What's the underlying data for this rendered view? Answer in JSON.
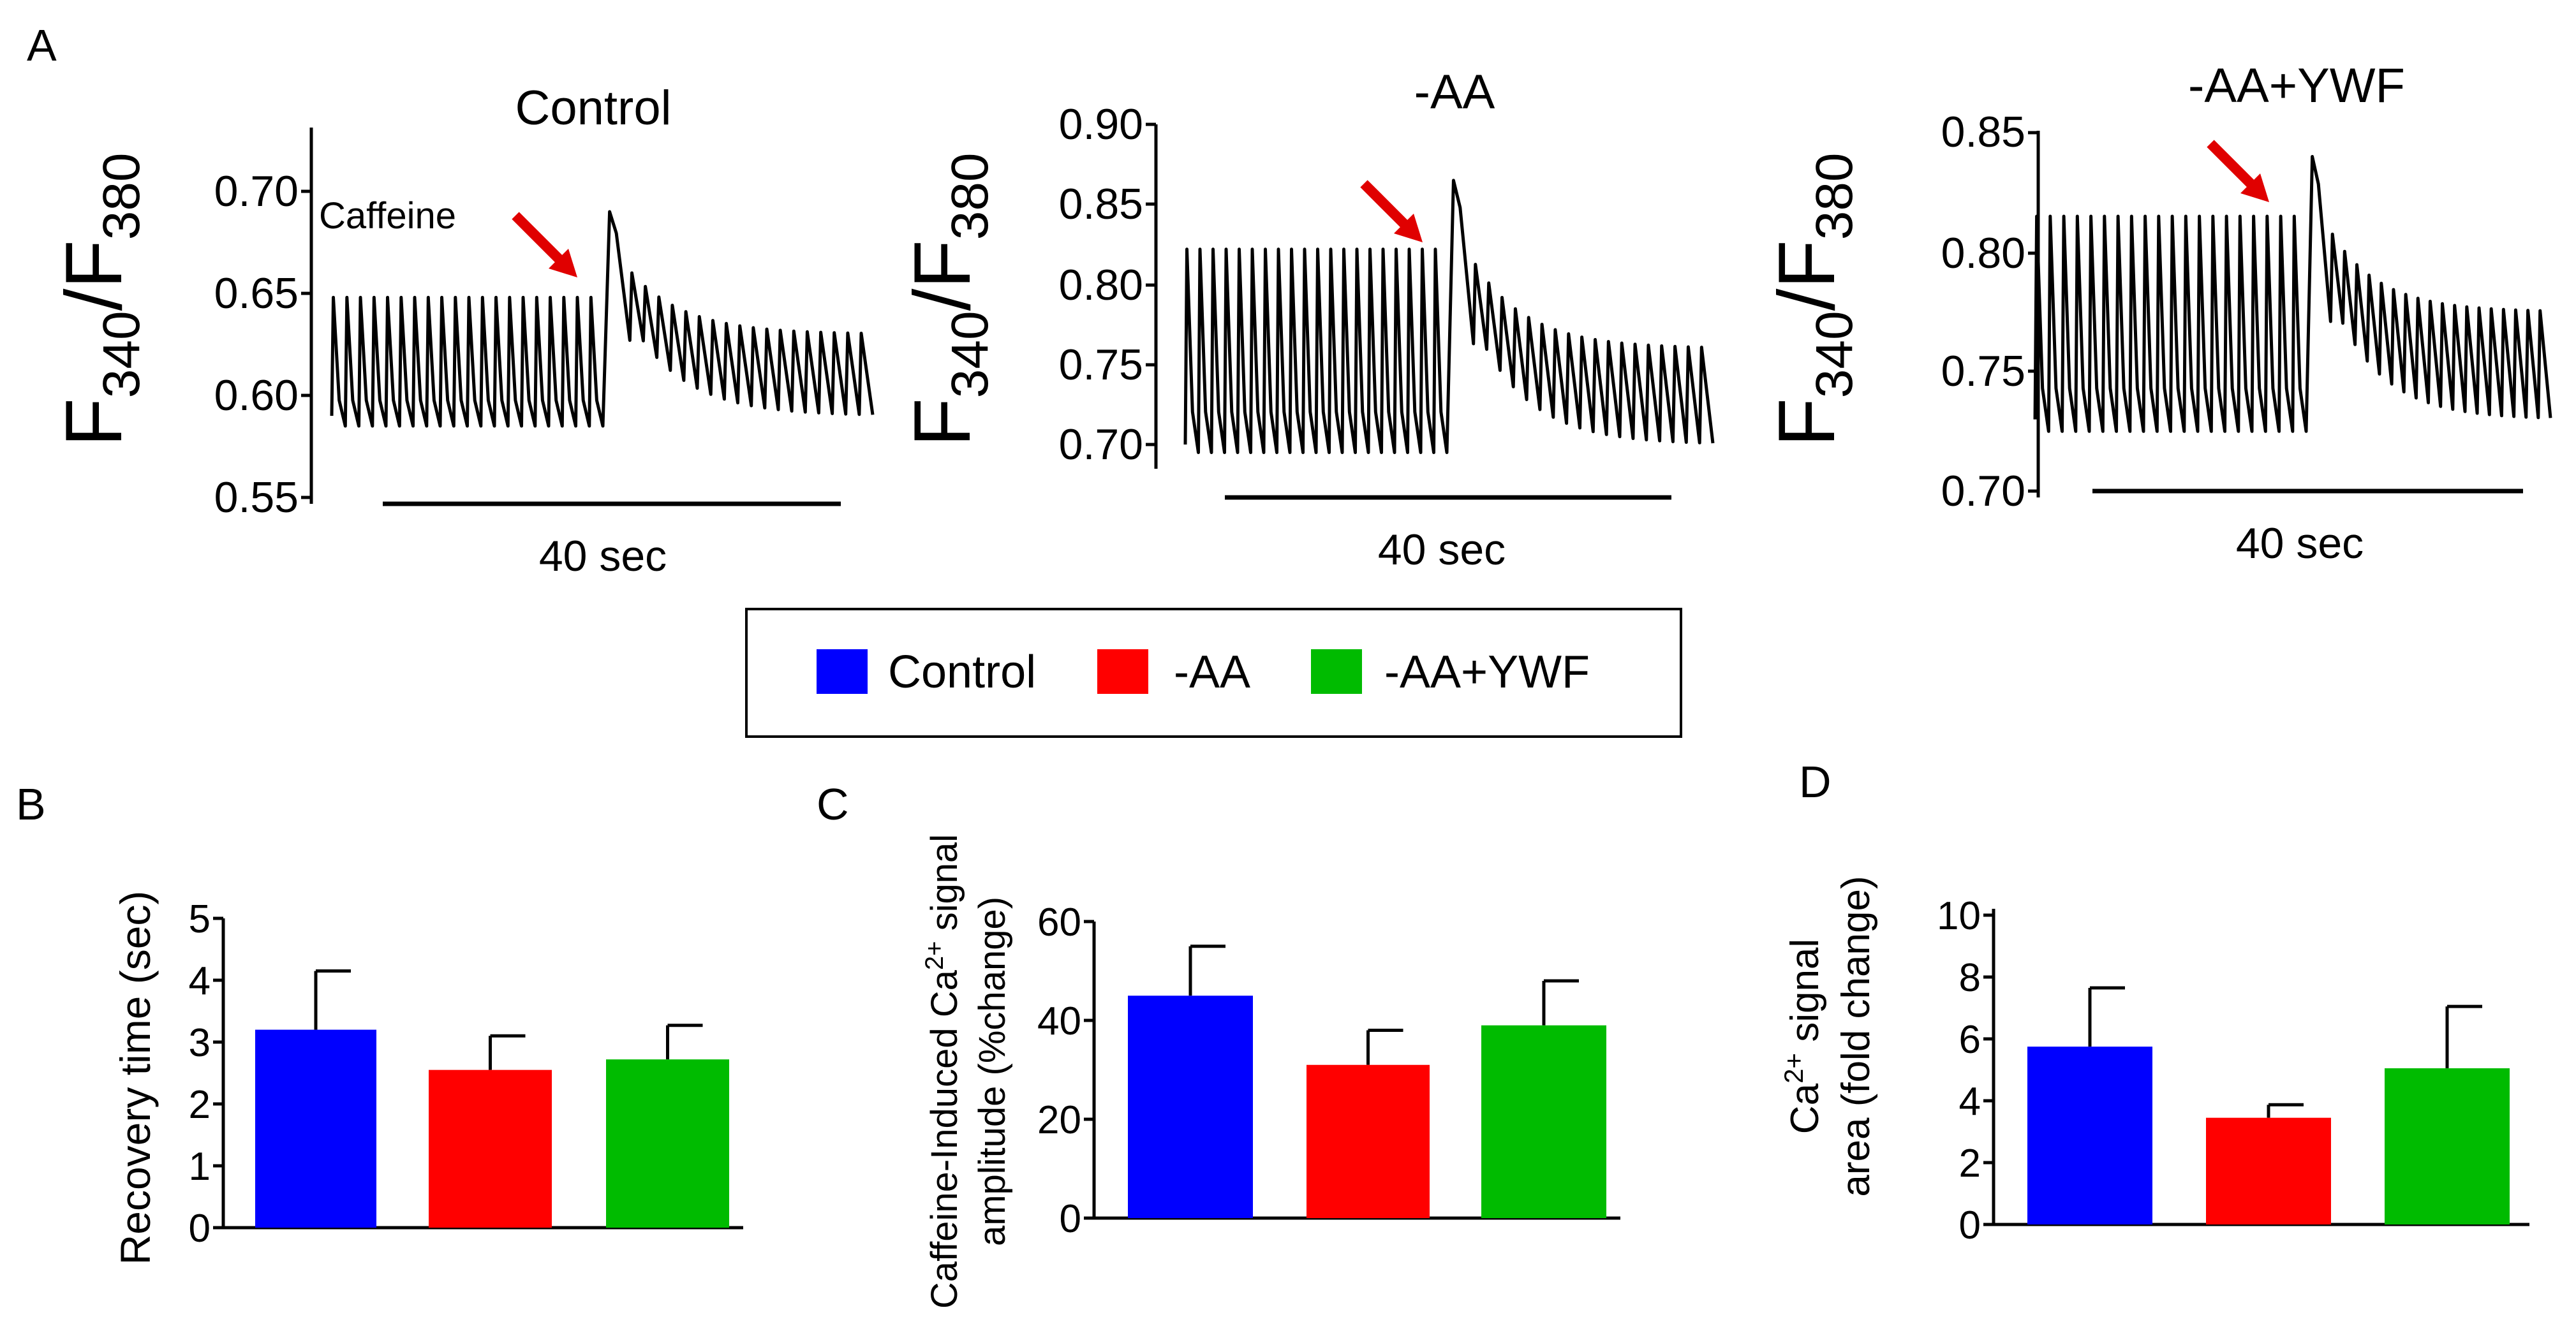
{
  "figure": {
    "panel_labels": [
      "A",
      "B",
      "C",
      "D"
    ],
    "legend": {
      "entries": [
        {
          "label": "Control",
          "color": "#0000ff"
        },
        {
          "label": "-AA",
          "color": "#ff0000"
        },
        {
          "label": "-AA+YWF",
          "color": "#00bb00"
        }
      ]
    }
  },
  "chart_data": [
    {
      "id": "A1",
      "type": "line",
      "title": "Control",
      "ylabel": "F340/F380",
      "ylabel_main": "F",
      "ylabel_sub1": "340",
      "ylabel_sep": "/F",
      "ylabel_sub2": "380",
      "yticks": [
        "0.70",
        "0.65",
        "0.60",
        "0.55"
      ],
      "ylim": [
        0.55,
        0.73
      ],
      "annotation": "Caffeine",
      "scale_bar_label": "40 sec",
      "series": [
        {
          "name": "Control",
          "baseline": 0.585,
          "peak": 0.648,
          "caffeine_peak": 0.69,
          "recovery_peak": 0.63,
          "n_before": 20,
          "n_after": 18
        }
      ]
    },
    {
      "id": "A2",
      "type": "line",
      "title": "-AA",
      "ylabel": "F340/F380",
      "ylabel_main": "F",
      "ylabel_sub1": "340",
      "ylabel_sep": "/F",
      "ylabel_sub2": "380",
      "yticks": [
        "0.90",
        "0.85",
        "0.80",
        "0.75",
        "0.70"
      ],
      "ylim": [
        0.69,
        0.9
      ],
      "scale_bar_label": "40 sec",
      "series": [
        {
          "name": "-AA",
          "baseline": 0.695,
          "peak": 0.822,
          "caffeine_peak": 0.865,
          "recovery_peak": 0.76,
          "n_before": 20,
          "n_after": 18
        }
      ]
    },
    {
      "id": "A3",
      "type": "line",
      "title": "-AA+YWF",
      "ylabel": "F340/F380",
      "ylabel_main": "F",
      "ylabel_sub1": "340",
      "ylabel_sep": "/F",
      "ylabel_sub2": "380",
      "yticks": [
        "0.85",
        "0.80",
        "0.75",
        "0.70"
      ],
      "ylim": [
        0.7,
        0.85
      ],
      "scale_bar_label": "40 sec",
      "series": [
        {
          "name": "-AA+YWF",
          "baseline": 0.725,
          "peak": 0.815,
          "caffeine_peak": 0.84,
          "recovery_peak": 0.775,
          "n_before": 20,
          "n_after": 18
        }
      ]
    },
    {
      "id": "B",
      "type": "bar",
      "ylabel": "Recovery time (sec)",
      "yticks": [
        "0",
        "1",
        "2",
        "3",
        "4",
        "5"
      ],
      "ylim": [
        0,
        5
      ],
      "categories": [
        "Control",
        "-AA",
        "-AA+YWF"
      ],
      "values": [
        3.2,
        2.55,
        2.72
      ],
      "errors": [
        0.95,
        0.55,
        0.55
      ]
    },
    {
      "id": "C",
      "type": "bar",
      "ylabel_line1_pre": "Caffeine-Induced Ca",
      "ylabel_line1_sup": "2+",
      "ylabel_line1_post": " signal",
      "ylabel_line2": "amplitude (%change)",
      "yticks": [
        "0",
        "20",
        "40",
        "60"
      ],
      "ylim": [
        0,
        60
      ],
      "categories": [
        "Control",
        "-AA",
        "-AA+YWF"
      ],
      "values": [
        45,
        31,
        39
      ],
      "errors": [
        10,
        7,
        9
      ]
    },
    {
      "id": "D",
      "type": "bar",
      "ylabel_line1_pre": "Ca",
      "ylabel_line1_sup": "2+",
      "ylabel_line1_post": " signal",
      "ylabel_line2": "area (fold change)",
      "yticks": [
        "0",
        "2",
        "4",
        "6",
        "8",
        "10"
      ],
      "ylim": [
        0,
        10
      ],
      "categories": [
        "Control",
        "-AA",
        "-AA+YWF"
      ],
      "values": [
        5.75,
        3.45,
        5.05
      ],
      "errors": [
        1.9,
        0.42,
        2.0
      ]
    }
  ]
}
